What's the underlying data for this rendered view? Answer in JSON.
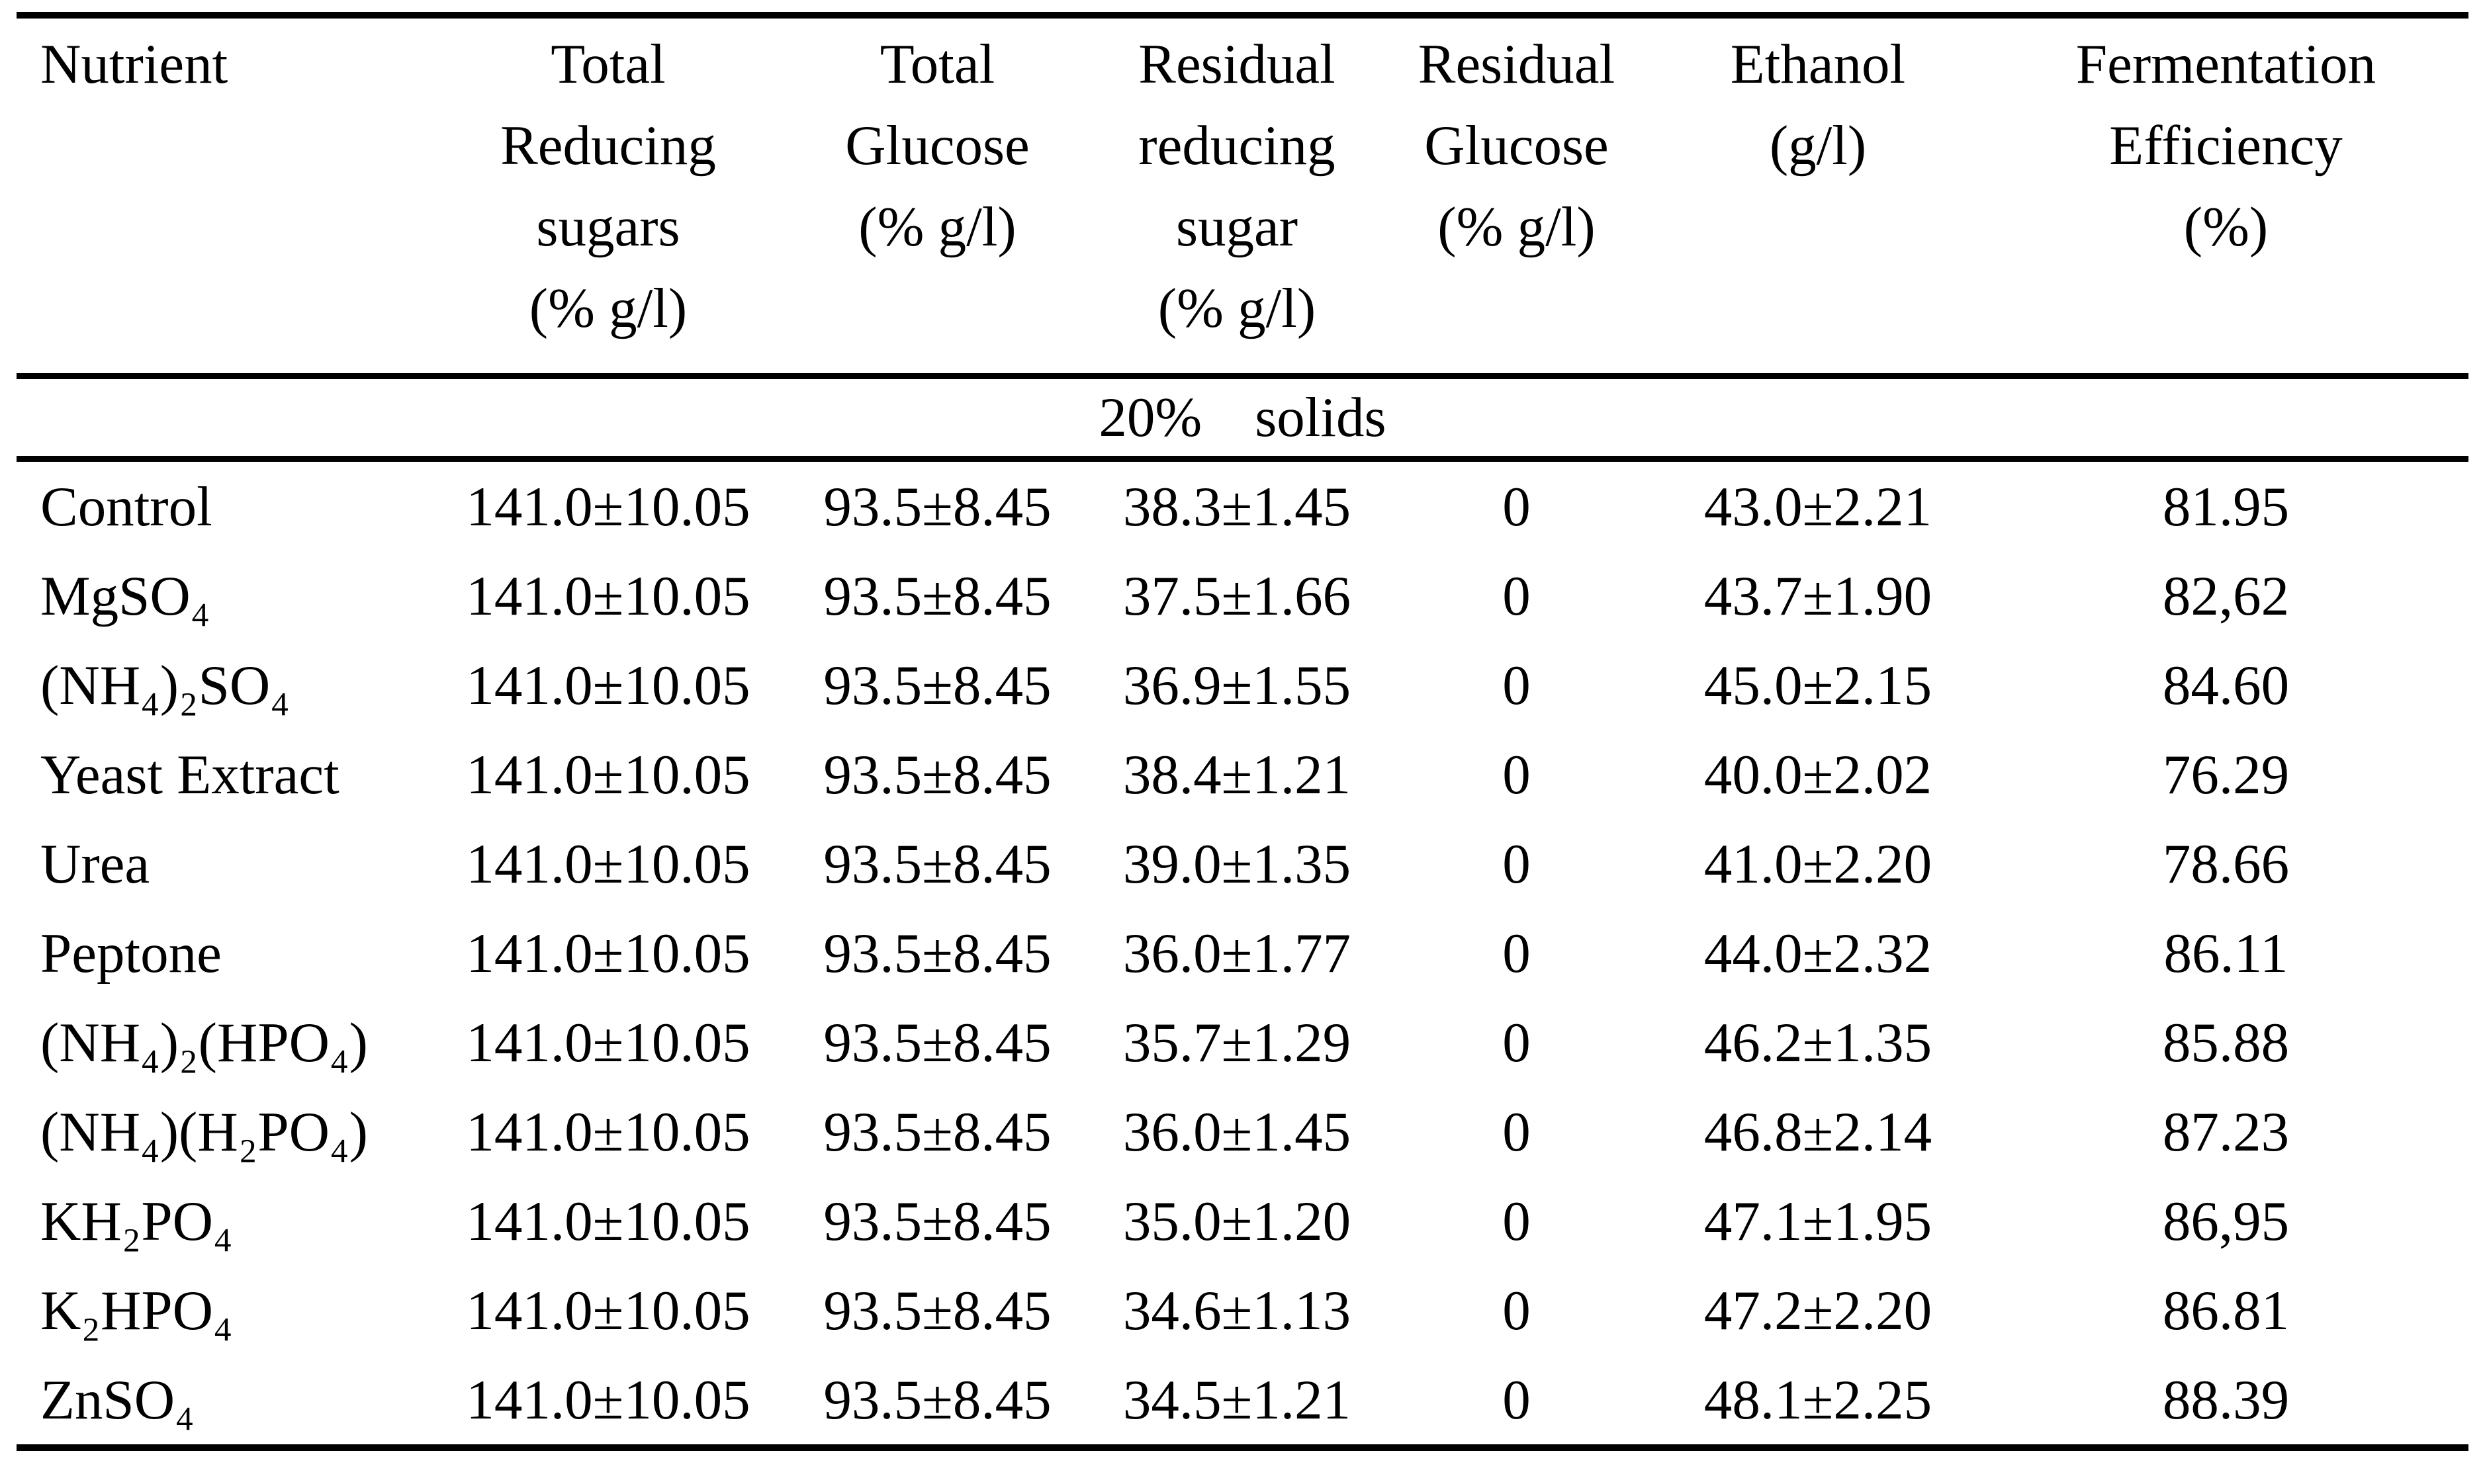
{
  "page": {
    "background_color": "#ffffff",
    "text_color": "#000000"
  },
  "table": {
    "columns": [
      {
        "key": "nutrient",
        "lines": [
          "Nutrient"
        ]
      },
      {
        "key": "total_reducing_sugars",
        "lines": [
          "Total",
          "Reducing",
          "sugars",
          "(% g/l)"
        ]
      },
      {
        "key": "total_glucose",
        "lines": [
          "Total",
          "Glucose",
          "(% g/l)"
        ]
      },
      {
        "key": "residual_reducing_sugar",
        "lines": [
          "Residual",
          "reducing",
          "sugar",
          "(% g/l)"
        ]
      },
      {
        "key": "residual_glucose",
        "lines": [
          "Residual",
          "Glucose",
          "(% g/l)"
        ]
      },
      {
        "key": "ethanol",
        "lines": [
          "Ethanol",
          "(g/l)"
        ]
      },
      {
        "key": "fermentation_efficiency",
        "lines": [
          "Fermentation",
          "Efficiency",
          "(%)"
        ]
      }
    ],
    "section_header": {
      "percent": "20%",
      "label": "solids"
    },
    "rows": [
      {
        "nutrient": "Control",
        "total_reducing_sugars": "141.0±10.05",
        "total_glucose": "93.5±8.45",
        "residual_reducing_sugar": "38.3±1.45",
        "residual_glucose": "0",
        "ethanol": "43.0±2.21",
        "fermentation_efficiency": "81.95"
      },
      {
        "nutrient": "MgSO₄",
        "total_reducing_sugars": "141.0±10.05",
        "total_glucose": "93.5±8.45",
        "residual_reducing_sugar": "37.5±1.66",
        "residual_glucose": "0",
        "ethanol": "43.7±1.90",
        "fermentation_efficiency": "82,62"
      },
      {
        "nutrient": "(NH₄)₂SO₄",
        "total_reducing_sugars": "141.0±10.05",
        "total_glucose": "93.5±8.45",
        "residual_reducing_sugar": "36.9±1.55",
        "residual_glucose": "0",
        "ethanol": "45.0±2.15",
        "fermentation_efficiency": "84.60"
      },
      {
        "nutrient": "Yeast Extract",
        "total_reducing_sugars": "141.0±10.05",
        "total_glucose": "93.5±8.45",
        "residual_reducing_sugar": "38.4±1.21",
        "residual_glucose": "0",
        "ethanol": "40.0±2.02",
        "fermentation_efficiency": "76.29"
      },
      {
        "nutrient": "Urea",
        "total_reducing_sugars": "141.0±10.05",
        "total_glucose": "93.5±8.45",
        "residual_reducing_sugar": "39.0±1.35",
        "residual_glucose": "0",
        "ethanol": "41.0±2.20",
        "fermentation_efficiency": "78.66"
      },
      {
        "nutrient": "Peptone",
        "total_reducing_sugars": "141.0±10.05",
        "total_glucose": "93.5±8.45",
        "residual_reducing_sugar": "36.0±1.77",
        "residual_glucose": "0",
        "ethanol": "44.0±2.32",
        "fermentation_efficiency": "86.11"
      },
      {
        "nutrient": "(NH₄)₂(HPO₄)",
        "total_reducing_sugars": "141.0±10.05",
        "total_glucose": "93.5±8.45",
        "residual_reducing_sugar": "35.7±1.29",
        "residual_glucose": "0",
        "ethanol": "46.2±1.35",
        "fermentation_efficiency": "85.88"
      },
      {
        "nutrient": "(NH₄)(H₂PO₄)",
        "total_reducing_sugars": "141.0±10.05",
        "total_glucose": "93.5±8.45",
        "residual_reducing_sugar": "36.0±1.45",
        "residual_glucose": "0",
        "ethanol": "46.8±2.14",
        "fermentation_efficiency": "87.23"
      },
      {
        "nutrient": "KH₂PO₄",
        "total_reducing_sugars": "141.0±10.05",
        "total_glucose": "93.5±8.45",
        "residual_reducing_sugar": "35.0±1.20",
        "residual_glucose": "0",
        "ethanol": "47.1±1.95",
        "fermentation_efficiency": "86,95"
      },
      {
        "nutrient": "K₂HPO₄",
        "total_reducing_sugars": "141.0±10.05",
        "total_glucose": "93.5±8.45",
        "residual_reducing_sugar": "34.6±1.13",
        "residual_glucose": "0",
        "ethanol": "47.2±2.20",
        "fermentation_efficiency": "86.81"
      },
      {
        "nutrient": "ZnSO₄",
        "total_reducing_sugars": "141.0±10.05",
        "total_glucose": "93.5±8.45",
        "residual_reducing_sugar": "34.5±1.21",
        "residual_glucose": "0",
        "ethanol": "48.1±2.25",
        "fermentation_efficiency": "88.39"
      }
    ]
  }
}
